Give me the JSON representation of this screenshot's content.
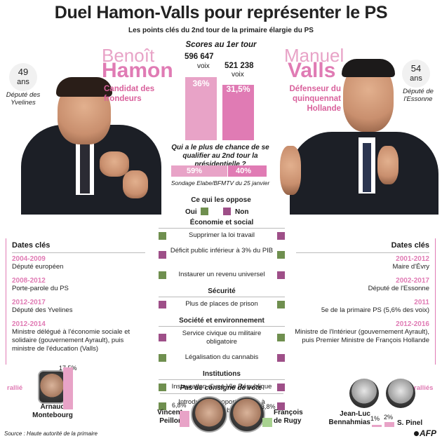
{
  "title": "Duel Hamon-Valls pour représenter le PS",
  "subtitle": "Les points clés du 2nd tour de la primaire élargie du PS",
  "hamon": {
    "first": "Benoît",
    "last": "Hamon",
    "age_num": "49",
    "age_unit": "ans",
    "role": "Député des Yvelines",
    "tag": "Candidat des frondeurs"
  },
  "valls": {
    "first": "Manuel",
    "last": "Valls",
    "age_num": "54",
    "age_unit": "ans",
    "role": "Député de l'Essonne",
    "tag": "Défenseur du quinquennat Hollande"
  },
  "scores": {
    "title": "Scores au 1er tour",
    "hamon_votes": "596 647",
    "valls_votes": "521 238",
    "voix": "voix",
    "hamon_pct": "36%",
    "valls_pct": "31,5%",
    "hamon_value": 36,
    "valls_value": 31.5
  },
  "poll": {
    "question": "Qui a le plus de chance de se qualifier au 2nd tour la présidentielle ?",
    "hamon_pct": "59%",
    "valls_pct": "40%",
    "hamon_value": 59,
    "valls_value": 40,
    "source": "Sondage Elabe/BFMTV du 25 janvier"
  },
  "oppose": {
    "title": "Ce qui les oppose",
    "oui": "Oui",
    "non": "Non",
    "colors": {
      "oui": "#6f8f4f",
      "non": "#9e4f88"
    },
    "sections": [
      {
        "name": "Économie et social",
        "items": [
          {
            "text": "Supprimer la loi travail",
            "hamon": "oui",
            "valls": "non"
          },
          {
            "text": "Déficit public inférieur à 3% du PIB",
            "hamon": "non",
            "valls": "oui"
          },
          {
            "text": "Instaurer un revenu universel",
            "hamon": "oui",
            "valls": "non"
          }
        ]
      },
      {
        "name": "Sécurité",
        "items": [
          {
            "text": "Plus de places de prison",
            "hamon": "non",
            "valls": "oui"
          }
        ]
      },
      {
        "name": "Société et environnement",
        "items": [
          {
            "text": "Service civique ou militaire obligatoire",
            "hamon": "non",
            "valls": "oui"
          },
          {
            "text": "Légalisation du cannabis",
            "hamon": "oui",
            "valls": "non"
          }
        ]
      },
      {
        "name": "Institutions",
        "items": [
          {
            "text": "Instauration d'une VIe République",
            "hamon": "oui",
            "valls": "non"
          },
          {
            "text": "Introduire la proportionnelle à l'Assemblée",
            "hamon": "oui",
            "valls": "non"
          }
        ]
      }
    ]
  },
  "dates_title": "Dates clés",
  "hamon_dates": [
    {
      "year": "2004-2009",
      "text": "Député européen"
    },
    {
      "year": "2008-2012",
      "text": "Porte-parole du PS"
    },
    {
      "year": "2012-2017",
      "text": "Député des Yvelines"
    },
    {
      "year": "2012-2014",
      "text": "Ministre délégué à l'économie sociale et solidaire (gouvernement Ayrault), puis ministre de l'éducation (Valls)"
    }
  ],
  "valls_dates": [
    {
      "year": "2001-2012",
      "text": "Maire d'Évry"
    },
    {
      "year": "2002-2017",
      "text": "Député de l'Essonne"
    },
    {
      "year": "2011",
      "text": "5e de la primaire PS (5,6% des voix)"
    },
    {
      "year": "2012-2016",
      "text": "Ministre de l'Intérieur (gouvernement Ayrault), puis Premier Ministre de François Hollande"
    }
  ],
  "rallies": {
    "left_label": "rallié",
    "right_label": "ralliés",
    "montebourg": {
      "name": "Arnaud Montebourg",
      "pct": "17,5%",
      "value": 17.5
    },
    "benhamias": {
      "name": "Jean-Luc Bennahmias",
      "pct": "1%",
      "value": 1
    },
    "pinel": {
      "name": "S. Pinel",
      "pct": "2%",
      "value": 2
    }
  },
  "no_consigne": {
    "title": "Pas de consigne de vote",
    "peillon": {
      "name": "Vincent Peillon",
      "pct": "6,8%",
      "value": 6.8
    },
    "rugy": {
      "name": "François de Rugy",
      "pct": "3,8%",
      "value": 3.8
    }
  },
  "source": "Source : Haute autorité de la primaire",
  "logo": "AFP"
}
